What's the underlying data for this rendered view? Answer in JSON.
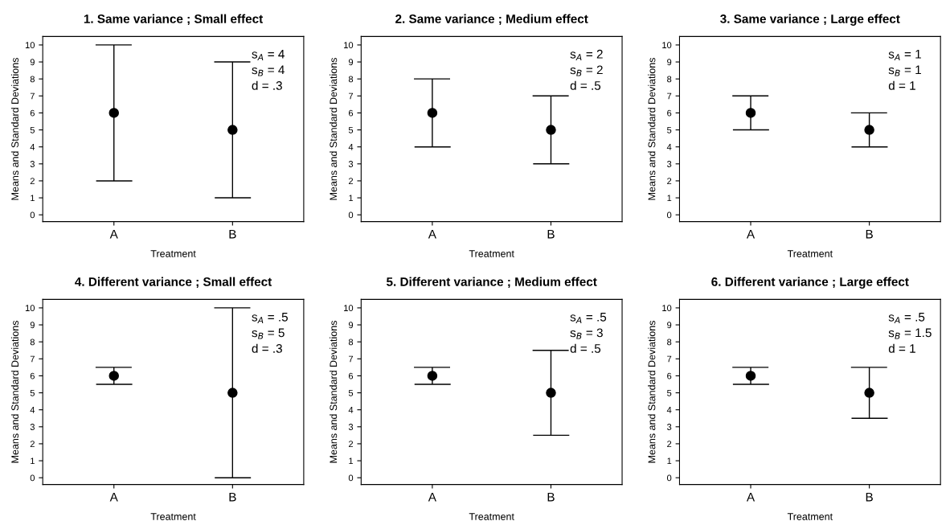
{
  "chart_data": [
    {
      "type": "scatter",
      "title": "1. Same variance ; Small effect",
      "xlabel": "Treatment",
      "ylabel": "Means and Standard Deviations",
      "categories": [
        "A",
        "B"
      ],
      "values": [
        6,
        5
      ],
      "errors": [
        4,
        4
      ],
      "color": "#000000",
      "marker": "circle",
      "ylim": [
        -0.4,
        10.5
      ],
      "yticks": [
        0,
        1,
        2,
        3,
        4,
        5,
        6,
        7,
        8,
        9,
        10
      ],
      "annotations": [
        "s$_{A}$ = 4",
        "s$_{B}$ = 4",
        "d = .3"
      ]
    },
    {
      "type": "scatter",
      "title": "2. Same variance ; Medium effect",
      "xlabel": "Treatment",
      "ylabel": "Means and Standard Deviations",
      "categories": [
        "A",
        "B"
      ],
      "values": [
        6,
        5
      ],
      "errors": [
        2,
        2
      ],
      "color": "#000000",
      "marker": "circle",
      "ylim": [
        -0.4,
        10.5
      ],
      "yticks": [
        0,
        1,
        2,
        3,
        4,
        5,
        6,
        7,
        8,
        9,
        10
      ],
      "annotations": [
        "s$_{A}$ = 2",
        "s$_{B}$ = 2",
        "d = .5"
      ]
    },
    {
      "type": "scatter",
      "title": "3. Same variance ; Large effect",
      "xlabel": "Treatment",
      "ylabel": "Means and Standard Deviations",
      "categories": [
        "A",
        "B"
      ],
      "values": [
        6,
        5
      ],
      "errors": [
        1,
        1
      ],
      "color": "#000000",
      "marker": "circle",
      "ylim": [
        -0.4,
        10.5
      ],
      "yticks": [
        0,
        1,
        2,
        3,
        4,
        5,
        6,
        7,
        8,
        9,
        10
      ],
      "annotations": [
        "s$_{A}$ = 1",
        "s$_{B}$ = 1",
        "d = 1"
      ]
    },
    {
      "type": "scatter",
      "title": "4. Different variance ; Small effect",
      "xlabel": "Treatment",
      "ylabel": "Means and Standard Deviations",
      "categories": [
        "A",
        "B"
      ],
      "values": [
        6,
        5
      ],
      "errors": [
        0.5,
        5
      ],
      "color": "#000000",
      "marker": "circle",
      "ylim": [
        -0.4,
        10.5
      ],
      "yticks": [
        0,
        1,
        2,
        3,
        4,
        5,
        6,
        7,
        8,
        9,
        10
      ],
      "annotations": [
        "s$_{A}$ = .5",
        "s$_{B}$ = 5",
        "d = .3"
      ]
    },
    {
      "type": "scatter",
      "title": "5. Different variance ; Medium effect",
      "xlabel": "Treatment",
      "ylabel": "Means and Standard Deviations",
      "categories": [
        "A",
        "B"
      ],
      "values": [
        6,
        5
      ],
      "errors": [
        0.5,
        2.5
      ],
      "color": "#000000",
      "marker": "circle",
      "ylim": [
        -0.4,
        10.5
      ],
      "yticks": [
        0,
        1,
        2,
        3,
        4,
        5,
        6,
        7,
        8,
        9,
        10
      ],
      "annotations": [
        "s$_{A}$ = .5",
        "s$_{B}$ = 3",
        "d = .5"
      ]
    },
    {
      "type": "scatter",
      "title": "6. Different variance ; Large effect",
      "xlabel": "Treatment",
      "ylabel": "Means and Standard Deviations",
      "categories": [
        "A",
        "B"
      ],
      "values": [
        6,
        5
      ],
      "errors": [
        0.5,
        1.5
      ],
      "color": "#000000",
      "marker": "circle",
      "ylim": [
        -0.4,
        10.5
      ],
      "yticks": [
        0,
        1,
        2,
        3,
        4,
        5,
        6,
        7,
        8,
        9,
        10
      ],
      "annotations": [
        "s$_{A}$ = .5",
        "s$_{B}$ = 1.5",
        "d = 1"
      ]
    }
  ]
}
